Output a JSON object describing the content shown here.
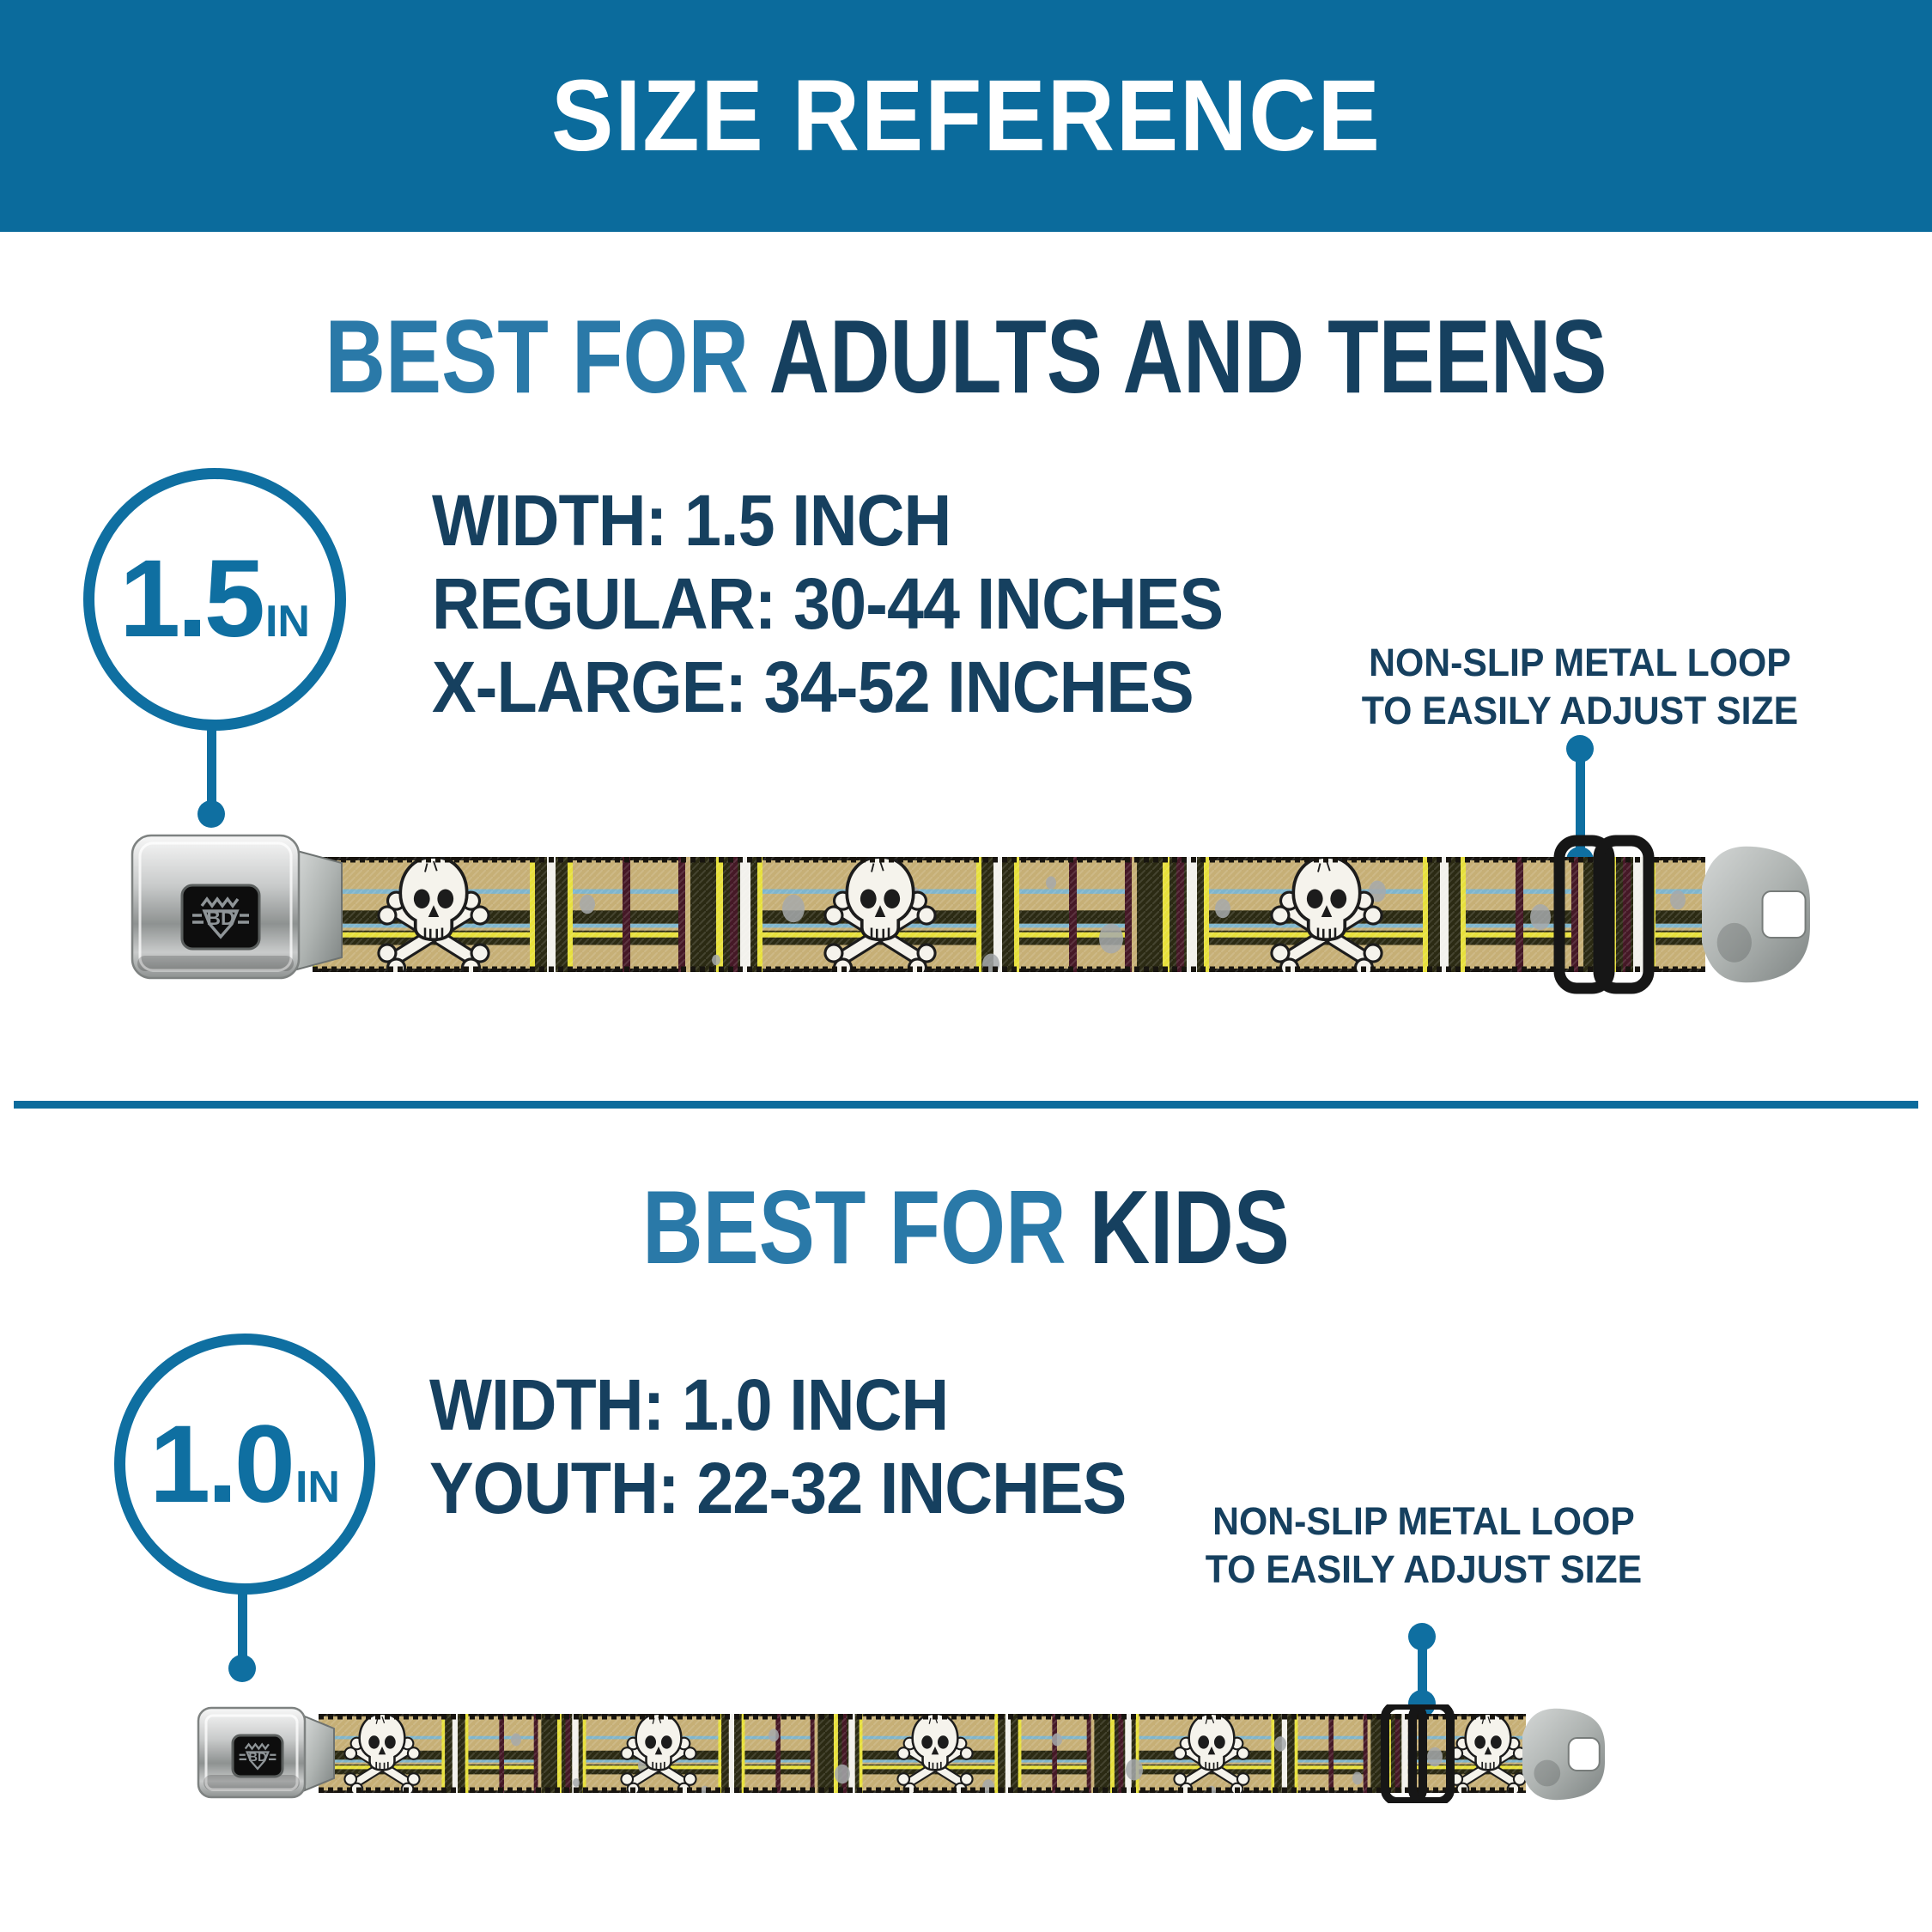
{
  "header": {
    "title": "SIZE REFERENCE"
  },
  "sections": {
    "adults": {
      "heading_prefix": "BEST FOR",
      "heading_rest": "ADULTS AND TEENS",
      "badge_value": "1.5",
      "badge_unit": "IN",
      "specs": [
        "WIDTH: 1.5 INCH",
        "REGULAR: 30-44 INCHES",
        "X-LARGE: 34-52 INCHES"
      ],
      "callout_line1": "NON-SLIP METAL LOOP",
      "callout_line2": "TO EASILY ADJUST SIZE",
      "belt": {
        "buckle_logo": "BD",
        "skull_count": 3
      }
    },
    "kids": {
      "heading_prefix": "BEST FOR",
      "heading_rest": "KIDS",
      "badge_value": "1.0",
      "badge_unit": "IN",
      "specs": [
        "WIDTH: 1.0 INCH",
        "YOUTH: 22-32 INCHES"
      ],
      "callout_line1": "NON-SLIP METAL LOOP",
      "callout_line2": "TO EASILY ADJUST SIZE",
      "belt": {
        "buckle_logo": "BD",
        "skull_count": 5
      }
    }
  },
  "colors": {
    "header_bg": "#0B6B9C",
    "accent_blue": "#2A79A8",
    "dark_navy": "#16405F",
    "circle_blue": "#0F6FA1",
    "divider": "#0B6B9C",
    "belt": {
      "tan": "#C6AF76",
      "dark_band": "#2B2A13",
      "light_blue": "#7FB5CC",
      "yellow": "#E7E03C",
      "white_stripe": "#F2F1EC",
      "maroon": "#451826",
      "edge": "#17140F",
      "splatter": "#A6A9AB",
      "skull": "#F5F3EC",
      "outline": "#1C1C1C",
      "chrome_light": "#F7F7F7",
      "chrome_mid": "#C9CBCB",
      "chrome_dark": "#8E9291",
      "buckle_window": "#0D0D0D",
      "logo_grey": "#8F9598",
      "loop_black": "#161616",
      "latch_light": "#D4D7D6",
      "latch_dark": "#7E8483"
    }
  }
}
